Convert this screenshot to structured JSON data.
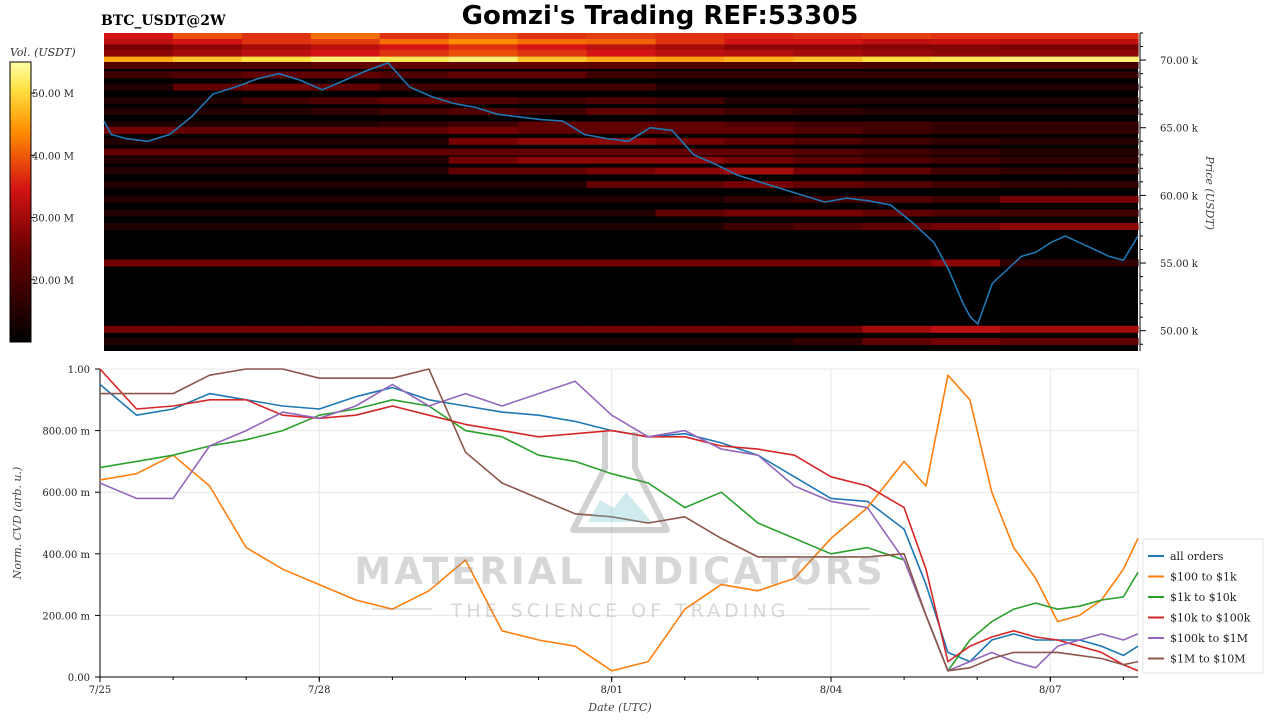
{
  "header": {
    "title": "Gomzi's Trading REF:53305",
    "symbol": "BTC_USDT@2W"
  },
  "watermark": {
    "name": "MATERIAL INDICATORS",
    "tagline": "THE SCIENCE OF TRADING"
  },
  "colors": {
    "all_orders": "#1f77b4",
    "s100_1k": "#ff7f0e",
    "s1k_10k": "#2ca02c",
    "s10k_100k": "#d62728",
    "s100k_1m": "#9467bd",
    "s1m_10m": "#8c564b",
    "heatmap_bg": "#000000"
  },
  "chart_data": [
    {
      "type": "heatmap",
      "colorbar": {
        "label": "Vol. (USDT)",
        "range": [
          10,
          55
        ],
        "ticks": [
          20,
          30,
          40,
          50
        ],
        "tick_labels": [
          "20.00 M",
          "30.00 M",
          "40.00 M",
          "50.00 M"
        ]
      },
      "ylabel": "Price (USDT)",
      "ylim": [
        48.5,
        72.0
      ],
      "yticks": [
        50,
        55,
        60,
        65,
        70
      ],
      "ytick_labels": [
        "50.00 k",
        "55.00 k",
        "60.00 k",
        "65.00 k",
        "70.00 k"
      ],
      "xlim": [
        0,
        14.2
      ],
      "bands": [
        {
          "price": 71.8,
          "intensity": [
            0.55,
            0.65,
            0.6,
            0.7,
            0.6,
            0.65,
            0.6,
            0.62,
            0.6,
            0.58,
            0.6,
            0.62,
            0.6,
            0.6,
            0.6
          ]
        },
        {
          "price": 71.3,
          "intensity": [
            0.5,
            0.55,
            0.6,
            0.62,
            0.7,
            0.75,
            0.7,
            0.68,
            0.6,
            0.55,
            0.55,
            0.5,
            0.52,
            0.5,
            0.5
          ]
        },
        {
          "price": 70.9,
          "intensity": [
            0.35,
            0.4,
            0.45,
            0.5,
            0.55,
            0.6,
            0.55,
            0.5,
            0.45,
            0.4,
            0.4,
            0.38,
            0.38,
            0.36,
            0.36
          ]
        },
        {
          "price": 70.5,
          "intensity": [
            0.4,
            0.45,
            0.5,
            0.55,
            0.6,
            0.65,
            0.6,
            0.55,
            0.5,
            0.48,
            0.45,
            0.42,
            0.4,
            0.4,
            0.4
          ]
        },
        {
          "price": 70.0,
          "intensity": [
            0.8,
            0.85,
            0.9,
            0.95,
            0.92,
            0.95,
            0.85,
            0.8,
            0.78,
            0.82,
            0.85,
            0.9,
            0.92,
            0.95,
            0.95
          ]
        },
        {
          "price": 69.6,
          "intensity": [
            0.25,
            0.25,
            0.25,
            0.3,
            0.3,
            0.3,
            0.3,
            0.28,
            0.25,
            0.25,
            0.25,
            0.22,
            0.22,
            0.2,
            0.2
          ]
        },
        {
          "price": 68.9,
          "intensity": [
            0.2,
            0.25,
            0.3,
            0.3,
            0.25,
            0.3,
            0.3,
            0.2,
            0.15,
            0.15,
            0.15,
            0.15,
            0.15,
            0.15,
            0.15
          ]
        },
        {
          "price": 68.0,
          "intensity": [
            0.1,
            0.3,
            0.35,
            0.3,
            0.2,
            0.2,
            0.2,
            0.2,
            0.1,
            0.1,
            0.1,
            0.1,
            0.1,
            0.1,
            0.1
          ]
        },
        {
          "price": 67.0,
          "intensity": [
            0.1,
            0.1,
            0.2,
            0.25,
            0.3,
            0.25,
            0.2,
            0.25,
            0.2,
            0.1,
            0.1,
            0.1,
            0.1,
            0.1,
            0.1
          ]
        },
        {
          "price": 66.2,
          "intensity": [
            0.1,
            0.1,
            0.1,
            0.15,
            0.2,
            0.25,
            0.2,
            0.3,
            0.25,
            0.2,
            0.15,
            0.1,
            0.1,
            0.1,
            0.1
          ]
        },
        {
          "price": 65.2,
          "intensity": [
            0.1,
            0.1,
            0.1,
            0.1,
            0.15,
            0.2,
            0.3,
            0.3,
            0.3,
            0.25,
            0.2,
            0.2,
            0.15,
            0.15,
            0.15
          ]
        },
        {
          "price": 64.8,
          "intensity": [
            0.35,
            0.3,
            0.3,
            0.3,
            0.3,
            0.35,
            0.3,
            0.3,
            0.3,
            0.3,
            0.25,
            0.2,
            0.15,
            0.15,
            0.15
          ]
        },
        {
          "price": 64.0,
          "intensity": [
            0.1,
            0.1,
            0.1,
            0.1,
            0.1,
            0.35,
            0.4,
            0.4,
            0.35,
            0.3,
            0.25,
            0.2,
            0.15,
            0.12,
            0.12
          ]
        },
        {
          "price": 63.2,
          "intensity": [
            0.3,
            0.3,
            0.3,
            0.3,
            0.3,
            0.3,
            0.3,
            0.3,
            0.3,
            0.3,
            0.25,
            0.2,
            0.15,
            0.12,
            0.12
          ]
        },
        {
          "price": 62.6,
          "intensity": [
            0.1,
            0.1,
            0.1,
            0.1,
            0.1,
            0.35,
            0.4,
            0.4,
            0.4,
            0.35,
            0.3,
            0.25,
            0.2,
            0.15,
            0.15
          ]
        },
        {
          "price": 61.8,
          "intensity": [
            0.1,
            0.1,
            0.1,
            0.1,
            0.1,
            0.3,
            0.3,
            0.35,
            0.4,
            0.45,
            0.35,
            0.3,
            0.2,
            0.15,
            0.15
          ]
        },
        {
          "price": 60.8,
          "intensity": [
            0.1,
            0.1,
            0.1,
            0.1,
            0.1,
            0.1,
            0.1,
            0.3,
            0.3,
            0.35,
            0.3,
            0.25,
            0.2,
            0.15,
            0.15
          ]
        },
        {
          "price": 59.7,
          "intensity": [
            0.1,
            0.1,
            0.1,
            0.1,
            0.1,
            0.1,
            0.1,
            0.1,
            0.1,
            0.15,
            0.2,
            0.25,
            0.2,
            0.35,
            0.35
          ]
        },
        {
          "price": 58.7,
          "intensity": [
            0.1,
            0.1,
            0.1,
            0.1,
            0.1,
            0.1,
            0.1,
            0.1,
            0.3,
            0.35,
            0.35,
            0.3,
            0.25,
            0.2,
            0.2
          ]
        },
        {
          "price": 57.7,
          "intensity": [
            0.1,
            0.1,
            0.1,
            0.1,
            0.1,
            0.1,
            0.1,
            0.1,
            0.1,
            0.2,
            0.25,
            0.3,
            0.35,
            0.4,
            0.4
          ]
        },
        {
          "price": 55.0,
          "intensity": [
            0.35,
            0.35,
            0.35,
            0.35,
            0.35,
            0.35,
            0.35,
            0.35,
            0.35,
            0.35,
            0.35,
            0.35,
            0.4,
            0.15,
            0.15
          ]
        },
        {
          "price": 50.1,
          "intensity": [
            0.35,
            0.35,
            0.35,
            0.35,
            0.35,
            0.35,
            0.35,
            0.35,
            0.35,
            0.35,
            0.35,
            0.45,
            0.5,
            0.45,
            0.45
          ]
        },
        {
          "price": 49.2,
          "intensity": [
            0.1,
            0.1,
            0.1,
            0.1,
            0.1,
            0.1,
            0.1,
            0.1,
            0.1,
            0.1,
            0.15,
            0.3,
            0.35,
            0.3,
            0.3
          ]
        }
      ],
      "price_line": {
        "x": [
          0,
          0.1,
          0.3,
          0.6,
          0.9,
          1.2,
          1.5,
          1.8,
          2.1,
          2.4,
          2.7,
          3.0,
          3.3,
          3.6,
          3.9,
          4.2,
          4.5,
          4.8,
          5.1,
          5.4,
          5.7,
          6.0,
          6.3,
          6.6,
          6.9,
          7.2,
          7.5,
          7.8,
          8.1,
          8.4,
          8.7,
          9.0,
          9.3,
          9.6,
          9.9,
          10.2,
          10.5,
          10.8,
          11.1,
          11.4,
          11.6,
          11.8,
          11.9,
          12.0,
          12.2,
          12.4,
          12.6,
          12.8,
          13.0,
          13.2,
          13.4,
          13.6,
          13.8,
          14.0,
          14.2
        ],
        "y": [
          65.5,
          64.5,
          64.2,
          64.0,
          64.5,
          65.8,
          67.5,
          68.0,
          68.6,
          69.0,
          68.5,
          67.8,
          68.5,
          69.2,
          69.8,
          68.0,
          67.3,
          66.8,
          66.5,
          66.0,
          65.8,
          65.6,
          65.5,
          64.5,
          64.2,
          64.0,
          65.0,
          64.8,
          63.0,
          62.3,
          61.5,
          61.0,
          60.5,
          60.0,
          59.5,
          59.8,
          59.6,
          59.3,
          58.0,
          56.5,
          54.5,
          52.0,
          51.0,
          50.5,
          53.5,
          54.5,
          55.5,
          55.8,
          56.5,
          57.0,
          56.5,
          56.0,
          55.5,
          55.2,
          57.0
        ]
      }
    },
    {
      "type": "line",
      "xlabel": "Date (UTC)",
      "ylabel": "Norm. CVD (arb. u.)",
      "xlim": [
        0,
        14.2
      ],
      "ylim": [
        0,
        1
      ],
      "xticks": [
        0,
        3,
        7,
        10,
        13
      ],
      "xtick_labels": [
        "7/25",
        "7/28",
        "8/01",
        "8/04",
        "8/07"
      ],
      "yticks": [
        0,
        0.2,
        0.4,
        0.6,
        0.8,
        1.0
      ],
      "ytick_labels": [
        "0.00",
        "200.00 m",
        "400.00 m",
        "600.00 m",
        "800.00 m",
        "1.00"
      ],
      "x": [
        0,
        0.5,
        1,
        1.5,
        2,
        2.5,
        3,
        3.5,
        4,
        4.5,
        5,
        5.5,
        6,
        6.5,
        7,
        7.5,
        8,
        8.5,
        9,
        9.5,
        10,
        10.5,
        11,
        11.3,
        11.6,
        11.9,
        12.2,
        12.5,
        12.8,
        13.1,
        13.4,
        13.7,
        14.0,
        14.2
      ],
      "series": [
        {
          "name": "all orders",
          "color_key": "all_orders",
          "values": [
            0.95,
            0.85,
            0.87,
            0.92,
            0.9,
            0.88,
            0.87,
            0.91,
            0.94,
            0.9,
            0.88,
            0.86,
            0.85,
            0.83,
            0.8,
            0.78,
            0.79,
            0.76,
            0.72,
            0.65,
            0.58,
            0.57,
            0.48,
            0.3,
            0.08,
            0.05,
            0.12,
            0.14,
            0.12,
            0.12,
            0.12,
            0.1,
            0.07,
            0.1
          ]
        },
        {
          "name": "$100 to $1k",
          "color_key": "s100_1k",
          "values": [
            0.64,
            0.66,
            0.72,
            0.62,
            0.42,
            0.35,
            0.3,
            0.25,
            0.22,
            0.28,
            0.38,
            0.15,
            0.12,
            0.1,
            0.02,
            0.05,
            0.22,
            0.3,
            0.28,
            0.32,
            0.45,
            0.55,
            0.7,
            0.62,
            0.98,
            0.9,
            0.6,
            0.42,
            0.32,
            0.18,
            0.2,
            0.25,
            0.35,
            0.45
          ]
        },
        {
          "name": "$1k to $10k",
          "color_key": "s1k_10k",
          "values": [
            0.68,
            0.7,
            0.72,
            0.75,
            0.77,
            0.8,
            0.85,
            0.87,
            0.9,
            0.88,
            0.8,
            0.78,
            0.72,
            0.7,
            0.66,
            0.63,
            0.55,
            0.6,
            0.5,
            0.45,
            0.4,
            0.42,
            0.38,
            0.2,
            0.02,
            0.12,
            0.18,
            0.22,
            0.24,
            0.22,
            0.23,
            0.25,
            0.26,
            0.34
          ]
        },
        {
          "name": "$10k to $100k",
          "color_key": "s10k_100k",
          "values": [
            1.0,
            0.87,
            0.88,
            0.9,
            0.9,
            0.85,
            0.84,
            0.85,
            0.88,
            0.85,
            0.82,
            0.8,
            0.78,
            0.79,
            0.8,
            0.78,
            0.78,
            0.75,
            0.74,
            0.72,
            0.65,
            0.62,
            0.55,
            0.35,
            0.05,
            0.1,
            0.13,
            0.15,
            0.13,
            0.12,
            0.1,
            0.08,
            0.04,
            0.02
          ]
        },
        {
          "name": "$100k to $1M",
          "color_key": "s100k_1m",
          "values": [
            0.63,
            0.58,
            0.58,
            0.75,
            0.8,
            0.86,
            0.84,
            0.88,
            0.95,
            0.88,
            0.92,
            0.88,
            0.92,
            0.96,
            0.85,
            0.78,
            0.8,
            0.74,
            0.72,
            0.62,
            0.57,
            0.55,
            0.38,
            0.2,
            0.02,
            0.05,
            0.08,
            0.05,
            0.03,
            0.1,
            0.12,
            0.14,
            0.12,
            0.14
          ]
        },
        {
          "name": "$1M to $10M",
          "color_key": "s1m_10m",
          "values": [
            0.92,
            0.92,
            0.92,
            0.98,
            1.0,
            1.0,
            0.97,
            0.97,
            0.97,
            1.0,
            0.73,
            0.63,
            0.58,
            0.53,
            0.52,
            0.5,
            0.52,
            0.45,
            0.39,
            0.39,
            0.39,
            0.39,
            0.4,
            0.2,
            0.02,
            0.03,
            0.06,
            0.08,
            0.08,
            0.08,
            0.07,
            0.06,
            0.04,
            0.05
          ]
        }
      ]
    }
  ]
}
